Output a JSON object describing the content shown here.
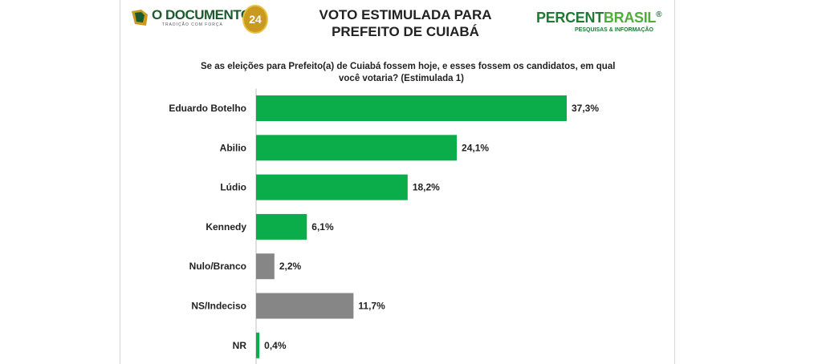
{
  "header": {
    "title_line1": "VOTO ESTIMULADA PARA",
    "title_line2": "PREFEITO DE  CUIABÁ",
    "subtitle_line1": "Se as eleições para Prefeito(a) de Cuiabá fossem hoje, e esses fossem os candidatos, em qual",
    "subtitle_line2": "você votaria? (Estimulada 1)"
  },
  "logos": {
    "left_name": "O DOCUMENTO",
    "left_badge": "24",
    "left_tagline": "TRADIÇÃO COM FORÇA",
    "right_part1": "PERCENT",
    "right_part2": "BRASIL",
    "right_registered": "®",
    "right_tagline": "PESQUISAS & INFORMAÇÃO"
  },
  "colors": {
    "candidate_bar": "#0aad4a",
    "other_bar": "#868686"
  },
  "chart_data": {
    "type": "bar",
    "orientation": "horizontal",
    "categories": [
      "Eduardo Botelho",
      "Abilio",
      "Lúdio",
      "Kennedy",
      "Nulo/Branco",
      "NS/Indeciso",
      "NR"
    ],
    "values": [
      37.3,
      24.1,
      18.2,
      6.1,
      2.2,
      11.7,
      0.4
    ],
    "value_labels": [
      "37,3%",
      "24,1%",
      "18,2%",
      "6,1%",
      "2,2%",
      "11,7%",
      "0,4%"
    ],
    "bar_colors": [
      "#0aad4a",
      "#0aad4a",
      "#0aad4a",
      "#0aad4a",
      "#868686",
      "#868686",
      "#0aad4a"
    ],
    "title": "",
    "xlabel": "",
    "ylabel": "",
    "xlim": [
      0,
      37.3
    ],
    "grid": false,
    "legend": false
  }
}
